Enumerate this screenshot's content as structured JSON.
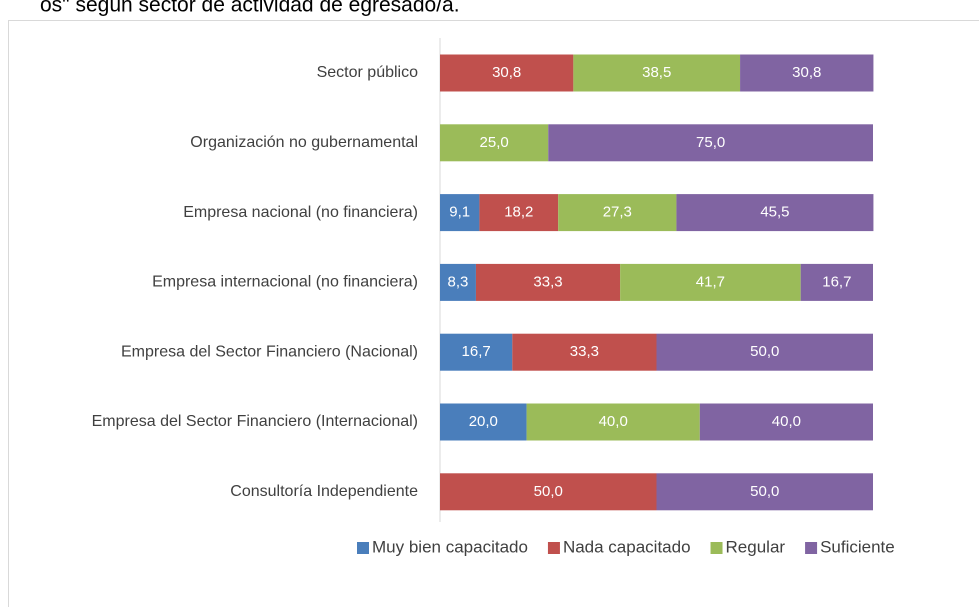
{
  "chart_data": {
    "type": "stacked-bar-horizontal",
    "title": "os\" según sector de actividad de egresado/a.",
    "categories": [
      "Sector público",
      "Organización no gubernamental",
      "Empresa nacional (no financiera)",
      "Empresa internacional (no financiera)",
      "Empresa del Sector Financiero (Nacional)",
      "Empresa del Sector Financiero (Internacional)",
      "Consultoría Independiente"
    ],
    "xlim": [
      0,
      100
    ],
    "legend": "bottom",
    "series": [
      {
        "name": "Muy bien capacitado",
        "color": "#4a7ebb",
        "values": [
          null,
          null,
          9.1,
          8.3,
          16.7,
          20.0,
          null
        ],
        "value_labels": [
          null,
          null,
          "9,1",
          "8,3",
          "16,7",
          "20,0",
          null
        ]
      },
      {
        "name": "Nada capacitado",
        "color": "#c0504d",
        "values": [
          30.8,
          null,
          18.2,
          33.3,
          33.3,
          null,
          50.0
        ],
        "value_labels": [
          "30,8",
          null,
          "18,2",
          "33,3",
          "33,3",
          null,
          "50,0"
        ]
      },
      {
        "name": "Regular",
        "color": "#9bbb59",
        "values": [
          38.5,
          25.0,
          27.3,
          41.7,
          null,
          40.0,
          null
        ],
        "value_labels": [
          "38,5",
          "25,0",
          "27,3",
          "41,7",
          null,
          "40,0",
          null
        ]
      },
      {
        "name": "Suficiente",
        "color": "#8064a2",
        "values": [
          30.8,
          75.0,
          45.5,
          16.7,
          50.0,
          40.0,
          50.0
        ],
        "value_labels": [
          "30,8",
          "75,0",
          "45,5",
          "16,7",
          "50,0",
          "40,0",
          "50,0"
        ]
      }
    ]
  }
}
